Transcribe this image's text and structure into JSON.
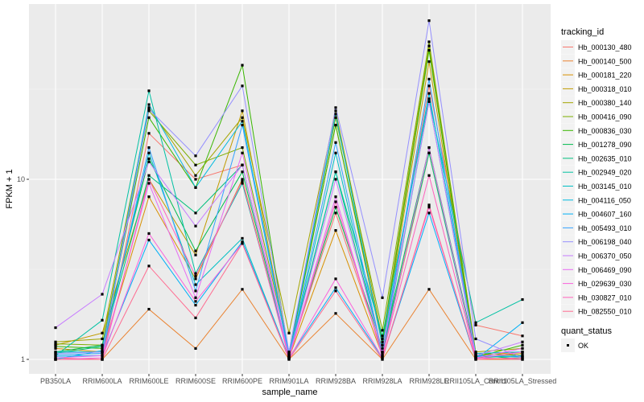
{
  "chart_data": {
    "type": "line",
    "title": "",
    "xlabel": "sample_name",
    "ylabel": "FPKM + 1",
    "y_scale": "log10",
    "ylim": [
      0.9,
      95
    ],
    "y_ticks": [
      1,
      10
    ],
    "y_tick_labels": [
      "1",
      "10"
    ],
    "grid": true,
    "categories": [
      "PB350LA",
      "RRIM600LA",
      "RRIM600LE",
      "RRIM600SE",
      "RRIM600PE",
      "RRIM901LA",
      "RRIM928BA",
      "RRIM928LA",
      "RRIM928LE",
      "RRII105LA_Control",
      "RRII105LA_Stressed"
    ],
    "legend": {
      "title": "tracking_id",
      "placement": "right",
      "shape_title": "quant_status",
      "shape_entries": [
        "OK"
      ]
    },
    "series": [
      {
        "name": "Hb_000130_480",
        "color": "#F8766D",
        "values": [
          1.02,
          1.0,
          18.0,
          10.0,
          12.0,
          1.05,
          6.5,
          1.1,
          33.0,
          1.55,
          1.35
        ]
      },
      {
        "name": "Hb_000140_500",
        "color": "#EA8331",
        "values": [
          1.0,
          1.0,
          1.9,
          1.15,
          2.45,
          1.0,
          1.8,
          1.0,
          2.45,
          1.0,
          1.0
        ]
      },
      {
        "name": "Hb_000181_220",
        "color": "#D89000",
        "values": [
          1.15,
          1.1,
          8.0,
          2.8,
          10.0,
          1.02,
          5.2,
          1.05,
          14.0,
          1.05,
          1.1
        ]
      },
      {
        "name": "Hb_000318_010",
        "color": "#C09B00",
        "values": [
          1.2,
          1.4,
          10.0,
          3.8,
          24.0,
          1.08,
          20.0,
          1.2,
          45.0,
          1.02,
          1.08
        ]
      },
      {
        "name": "Hb_000380_140",
        "color": "#A3A500",
        "values": [
          1.25,
          1.3,
          25.0,
          10.5,
          22.0,
          1.4,
          24.0,
          1.3,
          55.0,
          1.1,
          1.15
        ]
      },
      {
        "name": "Hb_000416_090",
        "color": "#7CAE00",
        "values": [
          1.22,
          1.2,
          24.0,
          12.0,
          15.0,
          1.1,
          22.0,
          1.45,
          58.0,
          1.08,
          1.05
        ]
      },
      {
        "name": "Hb_000836_030",
        "color": "#39B600",
        "values": [
          1.18,
          1.15,
          22.0,
          9.0,
          43.0,
          1.06,
          20.0,
          1.25,
          52.0,
          1.03,
          1.2
        ]
      },
      {
        "name": "Hb_001278_090",
        "color": "#00BB4E",
        "values": [
          1.1,
          1.2,
          13.0,
          4.0,
          11.0,
          1.04,
          7.0,
          1.15,
          15.0,
          1.06,
          1.0
        ]
      },
      {
        "name": "Hb_002635_010",
        "color": "#00BF7D",
        "values": [
          1.08,
          1.18,
          10.5,
          6.5,
          12.0,
          1.03,
          11.0,
          1.1,
          14.0,
          1.02,
          1.05
        ]
      },
      {
        "name": "Hb_002949_020",
        "color": "#00C1A3",
        "values": [
          1.05,
          1.65,
          31.0,
          3.0,
          9.5,
          1.05,
          11.0,
          1.35,
          28.0,
          1.6,
          2.15
        ]
      },
      {
        "name": "Hb_003145_010",
        "color": "#00BFC4",
        "values": [
          1.1,
          1.1,
          14.0,
          2.6,
          4.7,
          1.02,
          14.0,
          1.05,
          27.0,
          1.04,
          1.03
        ]
      },
      {
        "name": "Hb_004116_050",
        "color": "#00BAE0",
        "values": [
          1.0,
          1.12,
          26.0,
          9.0,
          21.0,
          1.08,
          23.0,
          1.2,
          30.0,
          1.08,
          1.1
        ]
      },
      {
        "name": "Hb_004607_160",
        "color": "#00B0F6",
        "values": [
          1.04,
          1.05,
          4.6,
          2.0,
          4.5,
          1.02,
          2.5,
          1.02,
          6.5,
          1.0,
          1.6
        ]
      },
      {
        "name": "Hb_005493_010",
        "color": "#35A2FF",
        "values": [
          1.06,
          1.08,
          15.0,
          2.4,
          20.0,
          1.04,
          16.0,
          1.08,
          36.0,
          1.05,
          1.04
        ]
      },
      {
        "name": "Hb_006198_040",
        "color": "#9590FF",
        "values": [
          1.08,
          1.1,
          24.5,
          13.5,
          33.0,
          1.1,
          25.0,
          2.2,
          76.0,
          1.3,
          1.02
        ]
      },
      {
        "name": "Hb_006370_050",
        "color": "#C77CFF",
        "values": [
          1.5,
          2.3,
          12.5,
          5.5,
          12.0,
          1.03,
          10.0,
          1.1,
          27.0,
          1.05,
          1.25
        ]
      },
      {
        "name": "Hb_006469_090",
        "color": "#E76BF3",
        "values": [
          1.02,
          1.05,
          9.5,
          2.2,
          14.0,
          1.02,
          8.0,
          1.03,
          15.0,
          1.02,
          1.15
        ]
      },
      {
        "name": "Hb_029639_030",
        "color": "#FA62DB",
        "values": [
          1.0,
          1.02,
          5.0,
          2.1,
          4.4,
          1.01,
          2.8,
          1.02,
          7.0,
          1.01,
          1.1
        ]
      },
      {
        "name": "Hb_030827_010",
        "color": "#FF62BC",
        "values": [
          1.0,
          1.0,
          10.0,
          2.9,
          9.8,
          1.01,
          7.5,
          1.05,
          10.5,
          1.02,
          1.0
        ]
      },
      {
        "name": "Hb_082550_010",
        "color": "#FF6C91",
        "values": [
          1.0,
          1.0,
          3.3,
          1.7,
          4.4,
          1.0,
          2.4,
          1.0,
          7.2,
          1.0,
          1.02
        ]
      }
    ]
  }
}
